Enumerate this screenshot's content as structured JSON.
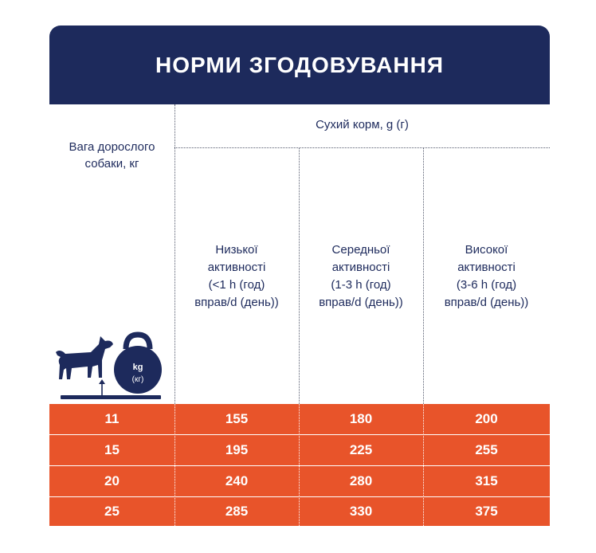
{
  "title": "НОРМИ ЗГОДОВУВАННЯ",
  "header": {
    "weight_line1": "Вага дорослого",
    "weight_line2": "собаки, кг",
    "dry_food": "Сухий корм, g (г)",
    "activity": [
      {
        "l1": "Низької",
        "l2": "активності",
        "l3": "(<1 h (год)",
        "l4": "вправ/d (день))"
      },
      {
        "l1": "Середньої",
        "l2": "активності",
        "l3": "(1-3 h (год)",
        "l4": "вправ/d (день))"
      },
      {
        "l1": "Високої",
        "l2": "активності",
        "l3": "(3-6 h (год)",
        "l4": "вправ/d (день))"
      }
    ]
  },
  "icon": {
    "name": "dog-kettlebell-icon",
    "kg_label": "kg",
    "kg_sub": "(кг)"
  },
  "rows": [
    {
      "weight": "11",
      "low": "155",
      "mid": "180",
      "high": "200"
    },
    {
      "weight": "15",
      "low": "195",
      "mid": "225",
      "high": "255"
    },
    {
      "weight": "20",
      "low": "240",
      "mid": "280",
      "high": "315"
    },
    {
      "weight": "25",
      "low": "285",
      "mid": "330",
      "high": "375"
    }
  ],
  "colors": {
    "navy": "#1d2a5c",
    "orange": "#e8542a",
    "white": "#ffffff"
  }
}
